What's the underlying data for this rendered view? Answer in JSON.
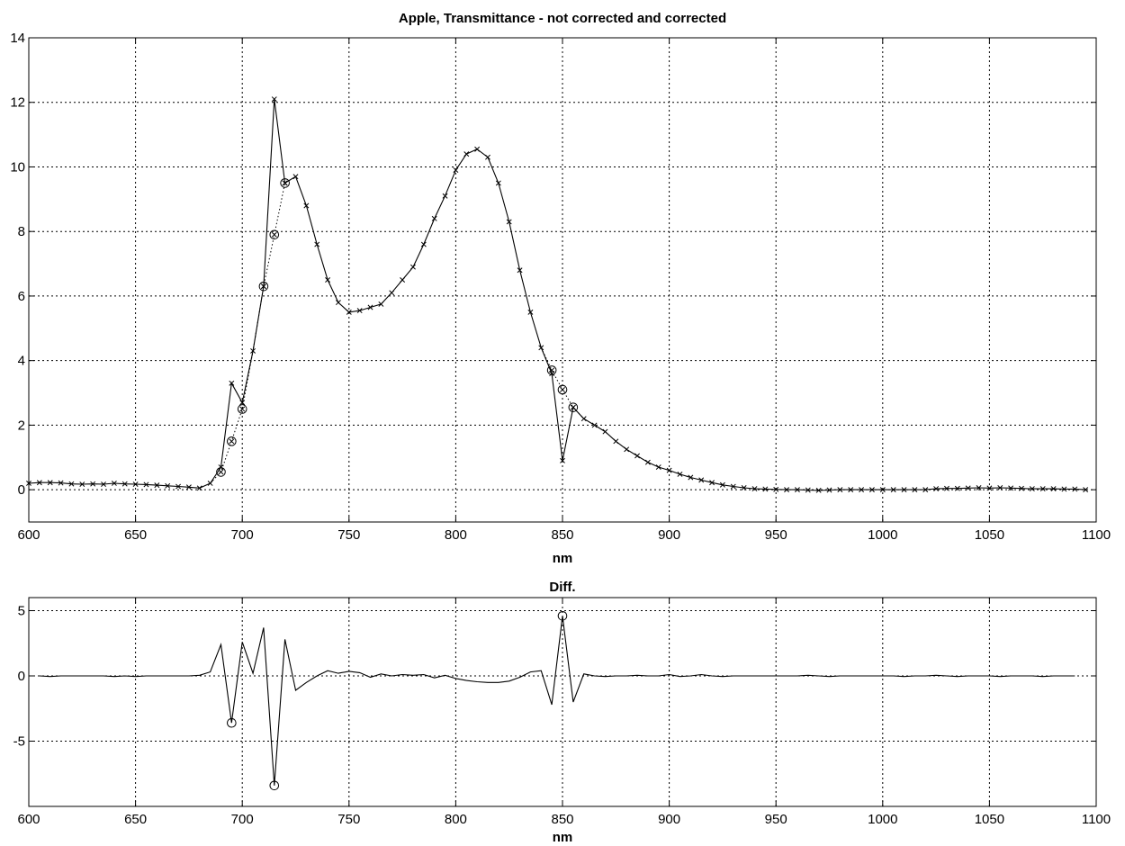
{
  "chart_data": [
    {
      "type": "line",
      "title": "Apple, Transmittance - not corrected and corrected",
      "xlabel": "nm",
      "ylabel": "",
      "xlim": [
        600,
        1100
      ],
      "ylim": [
        -1,
        14
      ],
      "xticks": [
        600,
        650,
        700,
        750,
        800,
        850,
        900,
        950,
        1000,
        1050,
        1100
      ],
      "yticks": [
        0,
        2,
        4,
        6,
        8,
        10,
        12,
        14
      ],
      "grid": true,
      "series": [
        {
          "style": "solid line with x markers",
          "x": [
            600,
            605,
            610,
            615,
            620,
            625,
            630,
            635,
            640,
            645,
            650,
            655,
            660,
            665,
            670,
            675,
            680,
            685,
            690,
            695,
            700,
            705,
            710,
            715,
            720,
            725,
            730,
            735,
            740,
            745,
            750,
            755,
            760,
            765,
            770,
            775,
            780,
            785,
            790,
            795,
            800,
            805,
            810,
            815,
            820,
            825,
            830,
            835,
            840,
            845,
            850,
            855,
            860,
            865,
            870,
            875,
            880,
            885,
            890,
            895,
            900,
            905,
            910,
            915,
            920,
            925,
            930,
            935,
            940,
            945,
            950,
            955,
            960,
            965,
            970,
            975,
            980,
            985,
            990,
            995,
            1000,
            1005,
            1010,
            1015,
            1020,
            1025,
            1030,
            1035,
            1040,
            1045,
            1050,
            1055,
            1060,
            1065,
            1070,
            1075,
            1080,
            1085,
            1090,
            1095
          ],
          "y": [
            0.2,
            0.22,
            0.22,
            0.21,
            0.18,
            0.17,
            0.18,
            0.17,
            0.2,
            0.18,
            0.17,
            0.16,
            0.14,
            0.12,
            0.1,
            0.08,
            0.05,
            0.2,
            0.7,
            3.3,
            2.7,
            4.3,
            6.3,
            12.1,
            9.5,
            9.7,
            8.8,
            7.6,
            6.5,
            5.8,
            5.5,
            5.55,
            5.65,
            5.75,
            6.1,
            6.5,
            6.9,
            7.6,
            8.4,
            9.1,
            9.9,
            10.4,
            10.55,
            10.3,
            9.5,
            8.3,
            6.8,
            5.5,
            4.4,
            3.6,
            0.9,
            2.55,
            2.2,
            2.0,
            1.8,
            1.5,
            1.25,
            1.05,
            0.85,
            0.7,
            0.6,
            0.48,
            0.38,
            0.3,
            0.22,
            0.15,
            0.1,
            0.06,
            0.03,
            0.02,
            0.01,
            0.0,
            0.0,
            -0.01,
            -0.02,
            -0.01,
            0.0,
            0.0,
            0.0,
            0.0,
            0.0,
            0.0,
            0.0,
            0.0,
            0.0,
            0.03,
            0.04,
            0.04,
            0.05,
            0.06,
            0.05,
            0.06,
            0.05,
            0.04,
            0.03,
            0.03,
            0.03,
            0.02,
            0.02,
            0.0
          ]
        },
        {
          "style": "dotted line with circle markers at corrected points",
          "x": [
            685,
            690,
            695,
            700,
            705,
            710,
            715,
            720,
            725
          ],
          "y": [
            0.2,
            0.55,
            1.5,
            2.5,
            4.3,
            6.3,
            7.9,
            9.5,
            9.7
          ],
          "circle_x": [
            690,
            695,
            700,
            710,
            715,
            720
          ]
        },
        {
          "style": "dotted line with circle markers at corrected points",
          "x": [
            840,
            845,
            850,
            855,
            860
          ],
          "y": [
            4.4,
            3.7,
            3.1,
            2.55,
            2.2
          ],
          "circle_x": [
            845,
            850,
            855
          ]
        }
      ]
    },
    {
      "type": "line",
      "title": "Diff.",
      "xlabel": "nm",
      "ylabel": "",
      "xlim": [
        600,
        1100
      ],
      "ylim": [
        -10,
        6
      ],
      "xticks": [
        600,
        650,
        700,
        750,
        800,
        850,
        900,
        950,
        1000,
        1050,
        1100
      ],
      "yticks": [
        5,
        0,
        -5
      ],
      "grid": true,
      "series": [
        {
          "style": "solid line",
          "x": [
            605,
            610,
            615,
            620,
            625,
            630,
            635,
            640,
            645,
            650,
            655,
            660,
            665,
            670,
            675,
            680,
            685,
            690,
            695,
            700,
            705,
            710,
            715,
            720,
            725,
            730,
            735,
            740,
            745,
            750,
            755,
            760,
            765,
            770,
            775,
            780,
            785,
            790,
            795,
            800,
            805,
            810,
            815,
            820,
            825,
            830,
            835,
            840,
            845,
            850,
            855,
            860,
            865,
            870,
            875,
            880,
            885,
            890,
            895,
            900,
            905,
            910,
            915,
            920,
            925,
            930,
            935,
            940,
            945,
            950,
            955,
            960,
            965,
            970,
            975,
            980,
            985,
            990,
            995,
            1000,
            1005,
            1010,
            1015,
            1020,
            1025,
            1030,
            1035,
            1040,
            1045,
            1050,
            1055,
            1060,
            1065,
            1070,
            1075,
            1080,
            1085,
            1090
          ],
          "y": [
            0,
            -0.05,
            0,
            0,
            0,
            0,
            0,
            -0.05,
            0,
            -0.05,
            0,
            0,
            0,
            0,
            0,
            0.05,
            0.3,
            2.4,
            -3.6,
            2.6,
            0.2,
            3.7,
            -8.4,
            2.8,
            -1.1,
            -0.5,
            0,
            0.4,
            0.2,
            0.35,
            0.25,
            -0.1,
            0.15,
            0,
            0.1,
            0.05,
            0.1,
            -0.15,
            0.05,
            -0.2,
            -0.35,
            -0.45,
            -0.5,
            -0.5,
            -0.4,
            -0.1,
            0.3,
            0.4,
            -2.2,
            4.6,
            -2.0,
            0.15,
            0,
            -0.05,
            0,
            0,
            0.05,
            0,
            0,
            0.1,
            -0.05,
            0,
            0.1,
            0,
            -0.05,
            0,
            0,
            0,
            0,
            0,
            0,
            0,
            0.05,
            0,
            -0.05,
            0,
            0,
            0,
            0,
            0,
            0,
            -0.05,
            0,
            0,
            0.05,
            0,
            -0.05,
            0,
            0,
            0,
            -0.05,
            0,
            0,
            0,
            -0.05,
            0,
            0,
            0
          ],
          "circle_x": [
            695,
            715,
            850
          ]
        }
      ]
    }
  ]
}
